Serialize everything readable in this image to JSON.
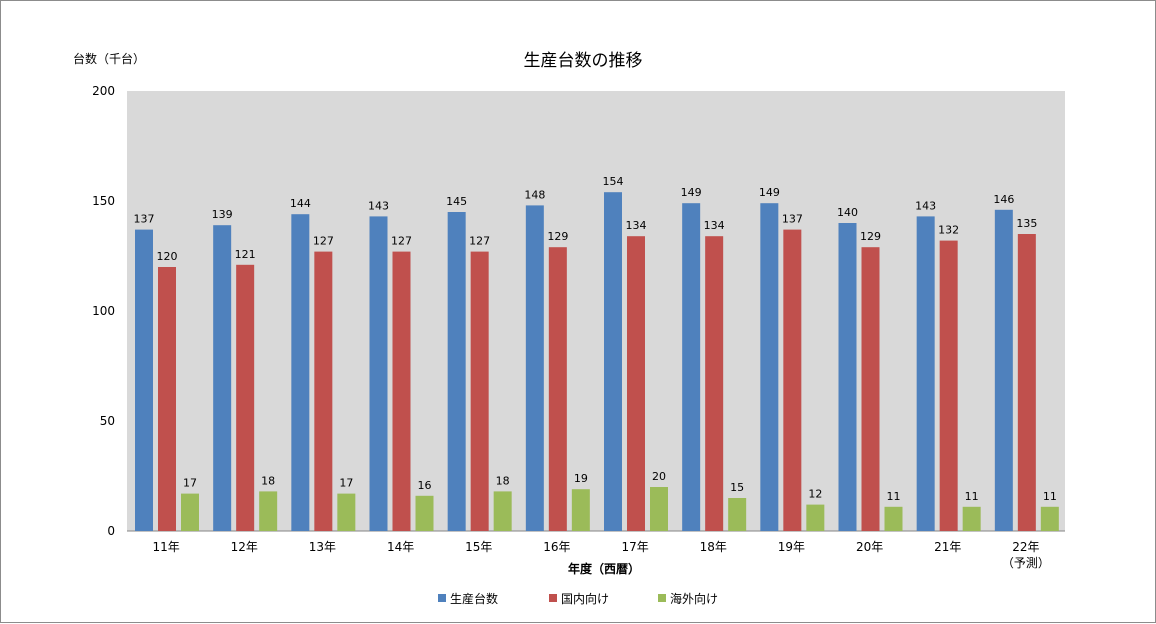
{
  "chart_data": {
    "type": "bar",
    "title": "生産台数の推移",
    "ylabel": "台数（千台）",
    "xlabel": "年度（西暦）",
    "ylim": [
      0,
      200
    ],
    "yticks": [
      0,
      50,
      100,
      150,
      200
    ],
    "grid": false,
    "legend_position": "bottom",
    "categories": [
      "11年",
      "12年",
      "13年",
      "14年",
      "15年",
      "16年",
      "17年",
      "18年",
      "19年",
      "20年",
      "21年",
      "22年"
    ],
    "category_sublabels": [
      "",
      "",
      "",
      "",
      "",
      "",
      "",
      "",
      "",
      "",
      "",
      "（予測）"
    ],
    "series": [
      {
        "name": "生産台数",
        "color": "#4f81bd",
        "values": [
          137,
          139,
          144,
          143,
          145,
          148,
          154,
          149,
          149,
          140,
          143,
          146
        ]
      },
      {
        "name": "国内向け",
        "color": "#c0504d",
        "values": [
          120,
          121,
          127,
          127,
          127,
          129,
          134,
          134,
          137,
          129,
          132,
          135
        ]
      },
      {
        "name": "海外向け",
        "color": "#9bbb59",
        "values": [
          17,
          18,
          17,
          16,
          18,
          19,
          20,
          15,
          12,
          11,
          11,
          11
        ]
      }
    ],
    "plot_background": "#d9d9d9"
  }
}
